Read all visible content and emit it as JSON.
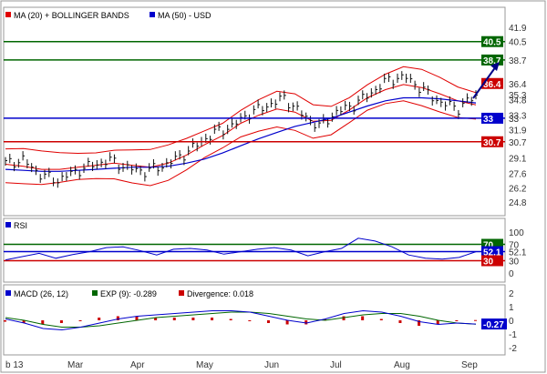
{
  "price_panel": {
    "legend": [
      {
        "label": "MA (20) + BOLLINGER BANDS",
        "color": "#e00000"
      },
      {
        "label": "MA (50) - USD",
        "color": "#0000cc"
      }
    ],
    "y_ticks": [
      "41.9",
      "40.5",
      "38.7",
      "36.4",
      "35.3",
      "34.8",
      "33.3",
      "33",
      "31.9",
      "30.7",
      "29.1",
      "27.6",
      "26.2",
      "24.8"
    ],
    "levels": [
      {
        "label": "40.5",
        "value": 40.5,
        "color": "#006600"
      },
      {
        "label": "38.7",
        "value": 38.7,
        "color": "#006600"
      },
      {
        "label": "36.4",
        "value": 36.4,
        "color": "#cc0000"
      },
      {
        "label": "33",
        "value": 33.0,
        "color": "#0000cc"
      },
      {
        "label": "30.7",
        "value": 30.7,
        "color": "#cc0000"
      }
    ],
    "target_value": 38.7
  },
  "rsi_panel": {
    "legend": {
      "label": "RSI",
      "color": "#0000cc"
    },
    "y_ticks": [
      "100",
      "70",
      "52.1",
      "30",
      "0"
    ],
    "levels": [
      {
        "label": "70",
        "value": 70,
        "color": "#006600"
      },
      {
        "label": "52.1",
        "value": 52.1,
        "color": "#0000cc"
      },
      {
        "label": "30",
        "value": 30,
        "color": "#cc0000"
      }
    ]
  },
  "macd_panel": {
    "legend": [
      {
        "label": "MACD (26, 12)",
        "color": "#0000cc"
      },
      {
        "label": "EXP (9): -0.289",
        "color": "#006600"
      },
      {
        "label": "Divergence: 0.018",
        "color": "#cc0000"
      }
    ],
    "y_ticks": [
      "2",
      "1",
      "0",
      "-1",
      "-2"
    ],
    "last_label": "-0.27"
  },
  "x_axis": {
    "labels": [
      "b 13",
      "Mar",
      "Apr",
      "May",
      "Jun",
      "Jul",
      "Aug",
      "Sep"
    ]
  },
  "chart_data": [
    {
      "type": "line",
      "panel": "price",
      "x_labels": [
        "b 13",
        "Mar",
        "Apr",
        "May",
        "Jun",
        "Jul",
        "Aug",
        "Sep"
      ],
      "ylim": [
        24.8,
        41.9
      ],
      "series": [
        {
          "name": "MA (20) + BOLLINGER BANDS",
          "color": "#e00000",
          "values": [
            28.5,
            28.3,
            28.0,
            28.0,
            28.2,
            28.4,
            28.6,
            28.4,
            28.2,
            28.6,
            29.4,
            30.4,
            31.3,
            32.5,
            33.3,
            33.9,
            33.6,
            32.7,
            32.8,
            33.8,
            35.0,
            35.8,
            36.3,
            36.0,
            35.4,
            34.7,
            34.3
          ]
        },
        {
          "name": "MA (50) - USD",
          "color": "#0000cc",
          "values": [
            28.0,
            27.9,
            27.8,
            27.8,
            27.9,
            28.0,
            28.1,
            28.2,
            28.2,
            28.3,
            28.6,
            29.0,
            29.6,
            30.3,
            31.0,
            31.6,
            32.2,
            32.6,
            33.0,
            33.6,
            34.2,
            34.7,
            35.0,
            35.0,
            34.9,
            34.7,
            34.5
          ]
        }
      ],
      "price": [
        28.6,
        28.9,
        27.5,
        26.9,
        27.8,
        28.4,
        28.9,
        28.1,
        27.8,
        28.3,
        29.2,
        30.4,
        31.6,
        32.2,
        33.5,
        34.2,
        35.0,
        33.4,
        32.2,
        33.6,
        34.3,
        35.5,
        36.8,
        37.0,
        35.7,
        34.5,
        34.0,
        35.2
      ]
    },
    {
      "type": "line",
      "panel": "rsi",
      "ylim": [
        0,
        100
      ],
      "values": [
        32,
        40,
        48,
        36,
        45,
        52,
        62,
        64,
        55,
        44,
        58,
        60,
        56,
        46,
        52,
        58,
        62,
        56,
        42,
        52,
        60,
        85,
        78,
        64,
        44,
        36,
        34,
        38,
        52
      ]
    },
    {
      "type": "line",
      "panel": "macd",
      "ylim": [
        -2,
        2
      ],
      "series": [
        {
          "name": "MACD (26, 12)",
          "color": "#0000cc",
          "values": [
            0.1,
            -0.2,
            -0.6,
            -0.7,
            -0.5,
            -0.2,
            0.1,
            0.3,
            0.4,
            0.5,
            0.6,
            0.7,
            0.7,
            0.6,
            0.3,
            0.0,
            -0.2,
            0.1,
            0.5,
            0.7,
            0.6,
            0.3,
            -0.1,
            -0.3,
            -0.2,
            -0.27
          ]
        },
        {
          "name": "EXP (9): -0.289",
          "color": "#006600",
          "values": [
            0.2,
            0.0,
            -0.3,
            -0.5,
            -0.5,
            -0.4,
            -0.2,
            0.0,
            0.2,
            0.3,
            0.4,
            0.5,
            0.6,
            0.6,
            0.5,
            0.3,
            0.1,
            0.0,
            0.2,
            0.4,
            0.5,
            0.5,
            0.3,
            0.0,
            -0.2,
            -0.289
          ]
        }
      ],
      "divergence": [
        -0.1,
        -0.2,
        -0.3,
        -0.2,
        0.0,
        0.2,
        0.3,
        0.3,
        0.2,
        0.2,
        0.2,
        0.2,
        0.1,
        0.0,
        -0.2,
        -0.3,
        -0.3,
        0.1,
        0.3,
        0.3,
        0.1,
        -0.2,
        -0.4,
        -0.3,
        0.0,
        0.018
      ]
    }
  ]
}
